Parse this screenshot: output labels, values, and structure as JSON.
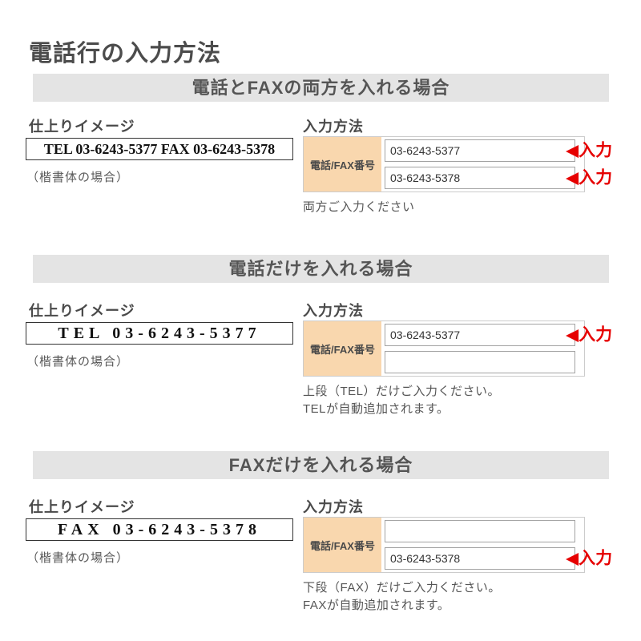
{
  "page": {
    "title": "電話行の入力方法"
  },
  "labels": {
    "finish_image_heading": "仕上りイメージ",
    "input_method_heading": "入力方法",
    "kaisho_note": "（楷書体の場合）",
    "row_label": "電話/FAX番号"
  },
  "colors": {
    "header_bar_bg": "#e4e4e4",
    "label_cell_bg": "#f9d7ae",
    "marker_red": "#e60000",
    "body_text": "#555555"
  },
  "sections": [
    {
      "header": "電話とFAXの両方を入れる場合",
      "sample_text": "TEL 03-6243-5377 FAX 03-6243-5378",
      "inputs": [
        {
          "value": "03-6243-5377",
          "marker": "◀入力"
        },
        {
          "value": "03-6243-5378",
          "marker": "◀入力"
        }
      ],
      "notes": [
        "両方ご入力ください"
      ]
    },
    {
      "header": "電話だけを入れる場合",
      "sample_text": "TEL 03-6243-5377",
      "inputs": [
        {
          "value": "03-6243-5377",
          "marker": "◀入力"
        },
        {
          "value": ""
        }
      ],
      "notes": [
        "上段（TEL）だけご入力ください。",
        "TELが自動追加されます。"
      ]
    },
    {
      "header": "FAXだけを入れる場合",
      "sample_text": "FAX 03-6243-5378",
      "inputs": [
        {
          "value": ""
        },
        {
          "value": "03-6243-5378",
          "marker": "◀入力"
        }
      ],
      "notes": [
        "下段（FAX）だけご入力ください。",
        "FAXが自動追加されます。"
      ]
    }
  ]
}
